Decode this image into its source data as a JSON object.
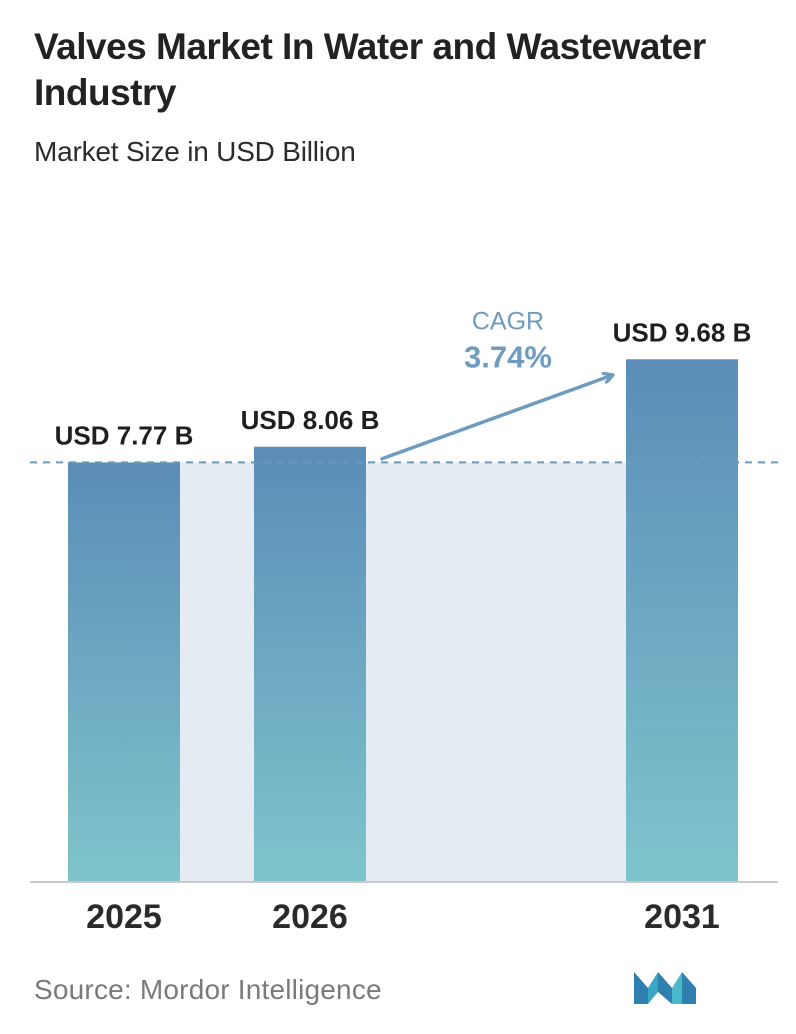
{
  "title": "Valves Market In Water and Wastewater Industry",
  "subtitle": "Market Size in USD Billion",
  "source": "Source:  Mordor Intelligence",
  "colors": {
    "bar_top": "#5b8db8",
    "bar_bottom": "#7fc4cb",
    "band": "#e4ebf2",
    "dash": "#6a9ab8",
    "cagr": "#6e9cc0",
    "axis": "#c9c9c9",
    "label": "#1f1f1f"
  },
  "logo": {
    "icon": "mordor-intelligence-logo"
  },
  "chart_data": {
    "type": "bar",
    "categories": [
      "2025",
      "2026",
      "2031"
    ],
    "values": [
      7.77,
      8.06,
      9.68
    ],
    "value_labels": [
      "USD 7.77 B",
      "USD 8.06 B",
      "USD 9.68 B"
    ],
    "cagr_label": "CAGR",
    "cagr_value": "3.74%",
    "reference_line_value": 7.77,
    "grid": false
  }
}
